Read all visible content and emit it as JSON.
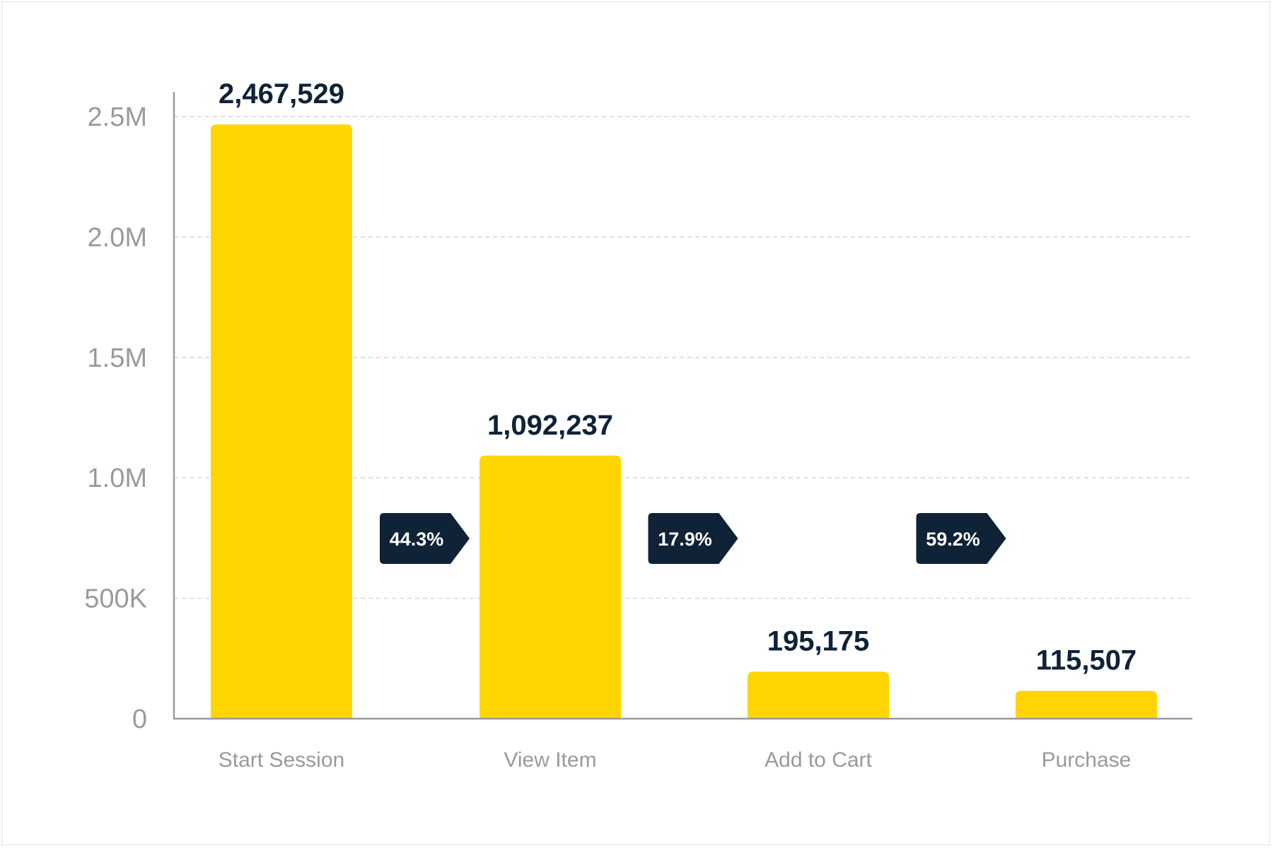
{
  "chart_data": {
    "type": "bar",
    "categories": [
      "Start Session",
      "View Item",
      "Add to Cart",
      "Purchase"
    ],
    "values": [
      2467529,
      1092237,
      195175,
      115507
    ],
    "value_labels": [
      "2,467,529",
      "1,092,237",
      "195,175",
      "115,507"
    ],
    "conversion_rates": [
      "44.3%",
      "17.9%",
      "59.2%"
    ],
    "y_ticks": [
      0,
      500000,
      1000000,
      1500000,
      2000000,
      2500000
    ],
    "y_tick_labels": [
      "0",
      "500K",
      "1.0M",
      "1.5M",
      "2.0M",
      "2.5M"
    ],
    "ylim": [
      0,
      2500000
    ],
    "grid": true,
    "title": "",
    "xlabel": "",
    "ylabel": ""
  },
  "colors": {
    "bar": "#FFD500",
    "label_dark": "#0f2236",
    "rate_badge": "#0f2236",
    "tick_text": "#9a9a9a",
    "axis": "#9a9a9a",
    "grid": "#d6d6d6"
  }
}
